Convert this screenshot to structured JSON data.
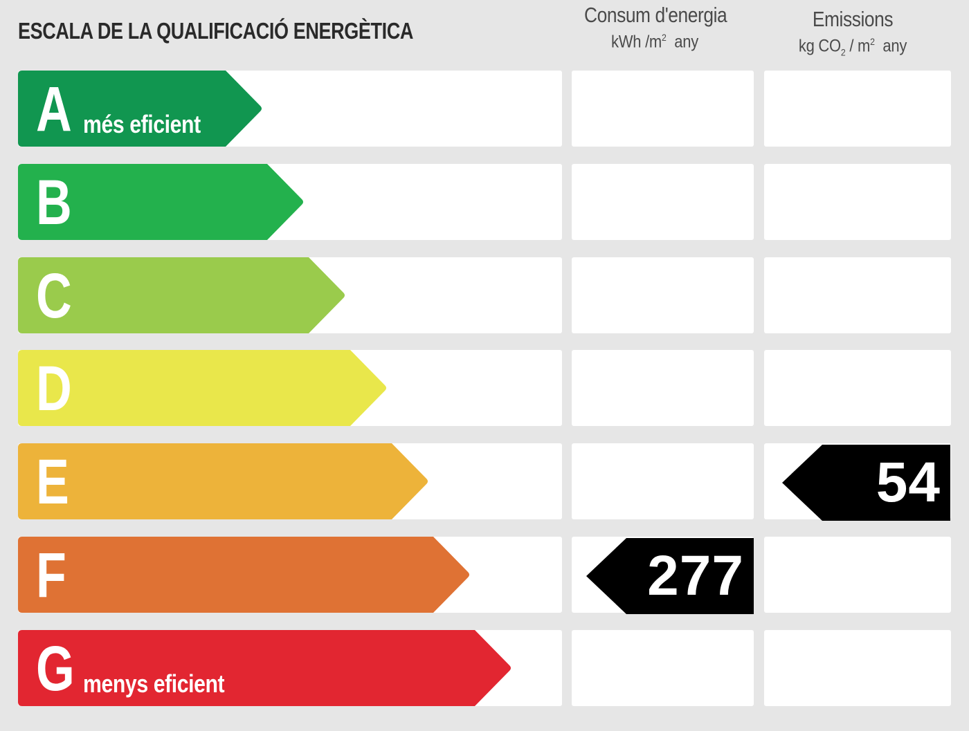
{
  "title": "ESCALA DE LA QUALIFICACIÓ ENERGÈTICA",
  "columns": {
    "energy": {
      "header": "Consum d'energia",
      "unit_prefix": "kWh /m",
      "unit_sup": "2",
      "unit_suffix": "any"
    },
    "emissions": {
      "header": "Emissions",
      "unit_prefix": "kg CO",
      "unit_sub": "2",
      "unit_mid": " / m",
      "unit_sup": "2",
      "unit_suffix": "any"
    }
  },
  "ratings": [
    {
      "letter": "A",
      "sublabel": "més eficient",
      "color": "#119650"
    },
    {
      "letter": "B",
      "sublabel": "",
      "color": "#23b14d"
    },
    {
      "letter": "C",
      "sublabel": "",
      "color": "#9acb4c"
    },
    {
      "letter": "D",
      "sublabel": "",
      "color": "#e9e74b"
    },
    {
      "letter": "E",
      "sublabel": "",
      "color": "#edb33a"
    },
    {
      "letter": "F",
      "sublabel": "",
      "color": "#df7234"
    },
    {
      "letter": "G",
      "sublabel": "menys eficient",
      "color": "#e22631"
    }
  ],
  "results": {
    "energy": {
      "value": "277",
      "rating": "F"
    },
    "emissions": {
      "value": "54",
      "rating": "E"
    }
  },
  "marker_color": "#000000"
}
